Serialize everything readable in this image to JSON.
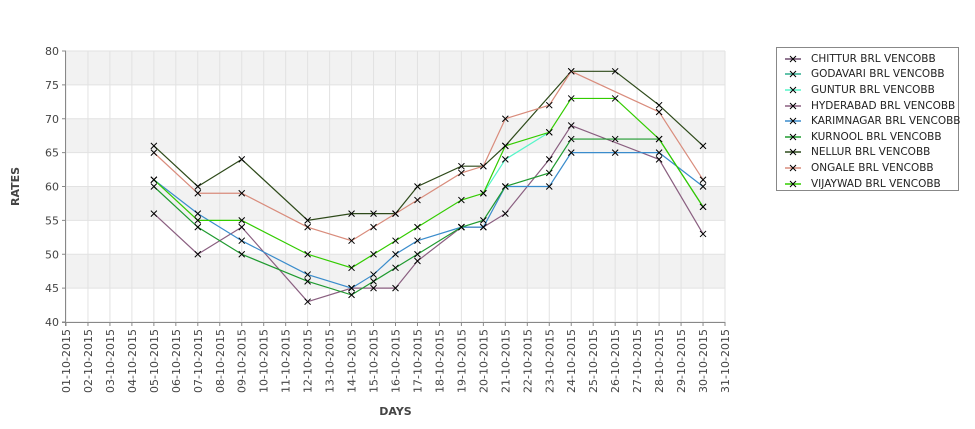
{
  "chart_data": {
    "type": "line",
    "title": "",
    "xlabel": "DAYS",
    "ylabel": "RATES",
    "ylim": [
      40,
      80
    ],
    "yticks": [
      40,
      45,
      50,
      55,
      60,
      65,
      70,
      75,
      80
    ],
    "grid": true,
    "legend_position": "right",
    "x_categories": [
      "01-10-2015",
      "02-10-2015",
      "03-10-2015",
      "04-10-2015",
      "05-10-2015",
      "06-10-2015",
      "07-10-2015",
      "08-10-2015",
      "09-10-2015",
      "10-10-2015",
      "11-10-2015",
      "12-10-2015",
      "13-10-2015",
      "14-10-2015",
      "15-10-2015",
      "16-10-2015",
      "17-10-2015",
      "18-10-2015",
      "19-10-2015",
      "20-10-2015",
      "21-10-2015",
      "22-10-2015",
      "23-10-2015",
      "24-10-2015",
      "25-10-2015",
      "26-10-2015",
      "27-10-2015",
      "28-10-2015",
      "29-10-2015",
      "30-10-2015",
      "31-10-2015"
    ],
    "series": [
      {
        "name": "CHITTUR BRL VENCOBB",
        "color": "#6e4a6e",
        "points": []
      },
      {
        "name": "GODAVARI BRL VENCOBB",
        "color": "#2fae8f",
        "points": []
      },
      {
        "name": "GUNTUR BRL VENCOBB",
        "color": "#55f5c8",
        "points": [
          [
            "20-10-2015",
            59
          ],
          [
            "21-10-2015",
            64
          ],
          [
            "23-10-2015",
            68
          ]
        ]
      },
      {
        "name": "HYDERABAD BRL VENCOBB",
        "color": "#8a5f80",
        "points": [
          [
            "05-10-2015",
            56
          ],
          [
            "07-10-2015",
            50
          ],
          [
            "09-10-2015",
            54
          ],
          [
            "12-10-2015",
            43
          ],
          [
            "14-10-2015",
            45
          ],
          [
            "15-10-2015",
            45
          ],
          [
            "16-10-2015",
            45
          ],
          [
            "17-10-2015",
            49
          ],
          [
            "19-10-2015",
            54
          ],
          [
            "20-10-2015",
            54
          ],
          [
            "21-10-2015",
            56
          ],
          [
            "23-10-2015",
            64
          ],
          [
            "24-10-2015",
            69
          ],
          [
            "28-10-2015",
            64
          ],
          [
            "30-10-2015",
            53
          ]
        ]
      },
      {
        "name": "KARIMNAGAR BRL VENCOBB",
        "color": "#3a8ccc",
        "points": [
          [
            "05-10-2015",
            61
          ],
          [
            "07-10-2015",
            56
          ],
          [
            "09-10-2015",
            52
          ],
          [
            "12-10-2015",
            47
          ],
          [
            "14-10-2015",
            45
          ],
          [
            "15-10-2015",
            47
          ],
          [
            "16-10-2015",
            50
          ],
          [
            "17-10-2015",
            52
          ],
          [
            "19-10-2015",
            54
          ],
          [
            "20-10-2015",
            54
          ],
          [
            "21-10-2015",
            60
          ],
          [
            "23-10-2015",
            60
          ],
          [
            "24-10-2015",
            65
          ],
          [
            "26-10-2015",
            65
          ],
          [
            "28-10-2015",
            65
          ],
          [
            "30-10-2015",
            60
          ]
        ]
      },
      {
        "name": "KURNOOL BRL VENCOBB",
        "color": "#1f9a2f",
        "points": [
          [
            "05-10-2015",
            60
          ],
          [
            "07-10-2015",
            54
          ],
          [
            "09-10-2015",
            50
          ],
          [
            "12-10-2015",
            46
          ],
          [
            "14-10-2015",
            44
          ],
          [
            "15-10-2015",
            46
          ],
          [
            "16-10-2015",
            48
          ],
          [
            "17-10-2015",
            50
          ],
          [
            "19-10-2015",
            54
          ],
          [
            "20-10-2015",
            55
          ],
          [
            "21-10-2015",
            60
          ],
          [
            "23-10-2015",
            62
          ],
          [
            "24-10-2015",
            67
          ],
          [
            "26-10-2015",
            67
          ],
          [
            "28-10-2015",
            67
          ],
          [
            "30-10-2015",
            57
          ]
        ]
      },
      {
        "name": "NELLUR BRL VENCOBB",
        "color": "#2e4a1a",
        "points": [
          [
            "05-10-2015",
            66
          ],
          [
            "07-10-2015",
            60
          ],
          [
            "09-10-2015",
            64
          ],
          [
            "12-10-2015",
            55
          ],
          [
            "14-10-2015",
            56
          ],
          [
            "15-10-2015",
            56
          ],
          [
            "16-10-2015",
            56
          ],
          [
            "17-10-2015",
            60
          ],
          [
            "19-10-2015",
            63
          ],
          [
            "20-10-2015",
            63
          ],
          [
            "21-10-2015",
            66
          ],
          [
            "24-10-2015",
            77
          ],
          [
            "26-10-2015",
            77
          ],
          [
            "28-10-2015",
            72
          ],
          [
            "30-10-2015",
            66
          ]
        ]
      },
      {
        "name": "ONGALE BRL VENCOBB",
        "color": "#d98c7c",
        "points": [
          [
            "05-10-2015",
            65
          ],
          [
            "07-10-2015",
            59
          ],
          [
            "09-10-2015",
            59
          ],
          [
            "12-10-2015",
            54
          ],
          [
            "14-10-2015",
            52
          ],
          [
            "15-10-2015",
            54
          ],
          [
            "16-10-2015",
            56
          ],
          [
            "17-10-2015",
            58
          ],
          [
            "19-10-2015",
            62
          ],
          [
            "20-10-2015",
            63
          ],
          [
            "21-10-2015",
            70
          ],
          [
            "23-10-2015",
            72
          ],
          [
            "24-10-2015",
            77
          ],
          [
            "28-10-2015",
            71
          ],
          [
            "30-10-2015",
            61
          ]
        ]
      },
      {
        "name": "VIJAYWAD BRL VENCOBB",
        "color": "#33cc00",
        "points": [
          [
            "05-10-2015",
            61
          ],
          [
            "07-10-2015",
            55
          ],
          [
            "09-10-2015",
            55
          ],
          [
            "12-10-2015",
            50
          ],
          [
            "14-10-2015",
            48
          ],
          [
            "15-10-2015",
            50
          ],
          [
            "16-10-2015",
            52
          ],
          [
            "17-10-2015",
            54
          ],
          [
            "19-10-2015",
            58
          ],
          [
            "20-10-2015",
            59
          ],
          [
            "21-10-2015",
            66
          ],
          [
            "23-10-2015",
            68
          ],
          [
            "24-10-2015",
            73
          ],
          [
            "26-10-2015",
            73
          ],
          [
            "28-10-2015",
            67
          ],
          [
            "30-10-2015",
            57
          ]
        ]
      }
    ]
  }
}
